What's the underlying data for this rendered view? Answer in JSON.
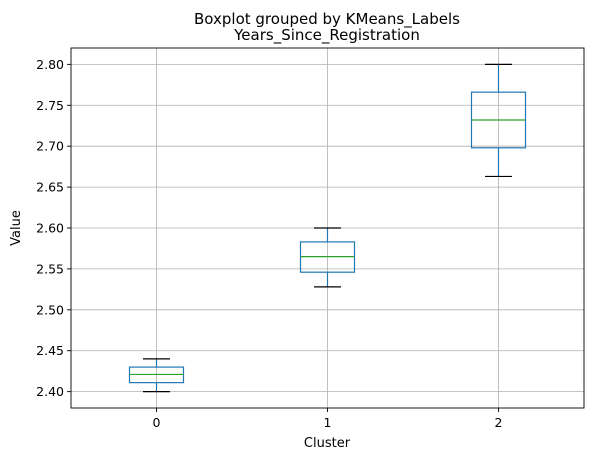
{
  "chart_data": {
    "type": "box",
    "suptitle": "Boxplot grouped by KMeans_Labels",
    "title": "Years_Since_Registration",
    "xlabel": "Cluster",
    "ylabel": "Value",
    "ylim": [
      2.38,
      2.82
    ],
    "yticks": [
      2.4,
      2.45,
      2.5,
      2.55,
      2.6,
      2.65,
      2.7,
      2.75,
      2.8
    ],
    "categories": [
      "0",
      "1",
      "2"
    ],
    "grid": true,
    "boxes": [
      {
        "category": "0",
        "whisker_low": 2.4,
        "q1": 2.411,
        "median": 2.421,
        "q3": 2.43,
        "whisker_high": 2.44
      },
      {
        "category": "1",
        "whisker_low": 2.528,
        "q1": 2.546,
        "median": 2.565,
        "q3": 2.583,
        "whisker_high": 2.6
      },
      {
        "category": "2",
        "whisker_low": 2.663,
        "q1": 2.698,
        "median": 2.732,
        "q3": 2.766,
        "whisker_high": 2.8
      }
    ],
    "colors": {
      "box": "#1f77b4",
      "median": "#2ca02c",
      "cap": "#000000",
      "grid": "#b0b0b0"
    }
  }
}
